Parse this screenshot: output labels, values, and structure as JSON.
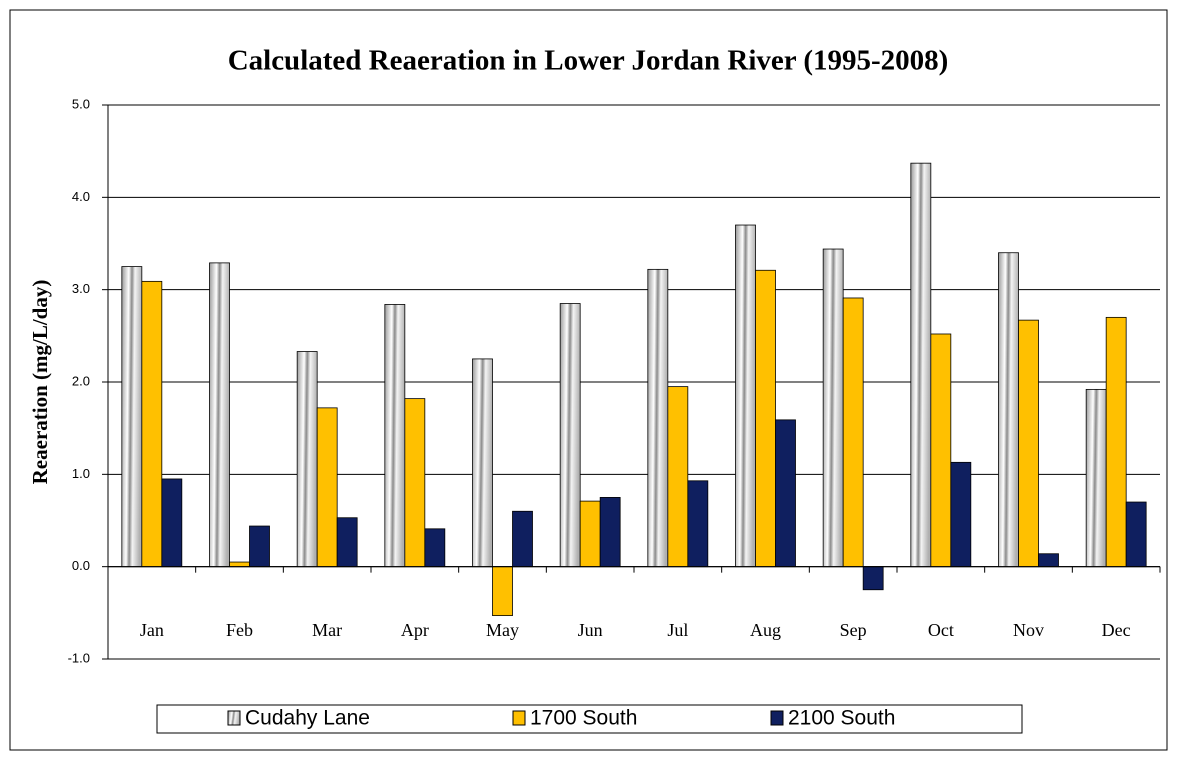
{
  "chart_data": {
    "type": "bar",
    "title": "Calculated Reaeration in Lower Jordan River (1995-2008)",
    "y_label": "Reaeration (mg/L/day)",
    "categories": [
      "Jan",
      "Feb",
      "Mar",
      "Apr",
      "May",
      "Jun",
      "Jul",
      "Aug",
      "Sep",
      "Oct",
      "Nov",
      "Dec"
    ],
    "series": [
      {
        "name": "Cudahy Lane",
        "color": "#c0c0c0",
        "values": [
          3.25,
          3.29,
          2.33,
          2.84,
          2.25,
          2.85,
          3.22,
          3.7,
          3.44,
          4.37,
          3.4,
          1.92
        ]
      },
      {
        "name": "1700 South",
        "color": "#ffc000",
        "values": [
          3.09,
          0.05,
          1.72,
          1.82,
          -0.53,
          0.71,
          1.95,
          3.21,
          2.91,
          2.52,
          2.67,
          2.7
        ]
      },
      {
        "name": "2100 South",
        "color": "#0f1f5f",
        "values": [
          0.95,
          0.44,
          0.53,
          0.41,
          0.6,
          0.75,
          0.93,
          1.59,
          -0.25,
          1.13,
          0.14,
          0.7
        ]
      }
    ],
    "ylim": [
      -1,
      5
    ],
    "yticks": [
      {
        "value": -1,
        "label": "-1.0"
      },
      {
        "value": 0,
        "label": "0.0"
      },
      {
        "value": 1,
        "label": "1.0"
      },
      {
        "value": 2,
        "label": "2.0"
      },
      {
        "value": 3,
        "label": "3.0"
      },
      {
        "value": 4,
        "label": "4.0"
      },
      {
        "value": 5,
        "label": "5.0"
      }
    ],
    "grid": true,
    "legend": "bottom"
  }
}
